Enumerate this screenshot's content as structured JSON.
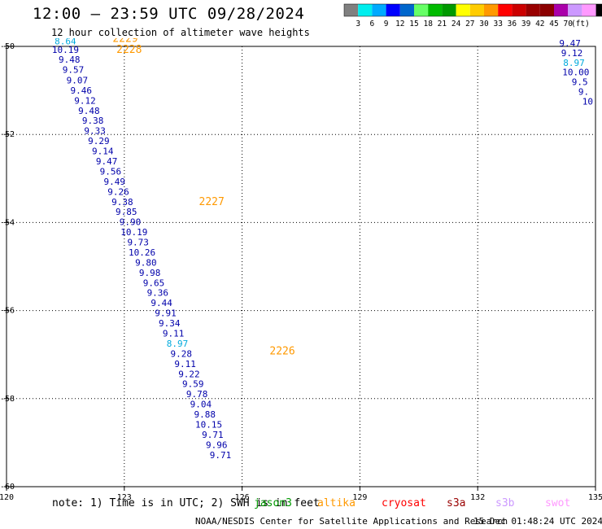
{
  "header": {
    "title": "12:00 – 23:59 UTC 09/28/2024",
    "subtitle": "12 hour collection of altimeter wave heights"
  },
  "legend": {
    "unit": "(ft)",
    "colors": [
      "#808080",
      "#00eeee",
      "#00aaff",
      "#0000ff",
      "#0066cc",
      "#66ff66",
      "#00bb00",
      "#009900",
      "#ffff00",
      "#ffcc00",
      "#ff9900",
      "#ff0000",
      "#cc0000",
      "#990000",
      "#8b0000",
      "#aa00aa",
      "#cc99ff",
      "#ff99ff",
      "#000000"
    ],
    "labels": [
      "3",
      "6",
      "9",
      "12",
      "15",
      "18",
      "21",
      "24",
      "27",
      "30",
      "33",
      "36",
      "39",
      "42",
      "45",
      "70"
    ]
  },
  "footer": {
    "note": "note: 1) Time is in UTC; 2) SWH is in feet",
    "missions": [
      {
        "name": "jason3",
        "color": "#009900"
      },
      {
        "name": "altika",
        "color": "#ff9900"
      },
      {
        "name": "cryosat",
        "color": "#ff0000"
      },
      {
        "name": "s3a",
        "color": "#990000"
      },
      {
        "name": "s3b",
        "color": "#cc99ff"
      },
      {
        "name": "swot",
        "color": "#ff99ff"
      }
    ],
    "credit": "NOAA/NESDIS Center for Satellite Applications and Research",
    "timestamp": "15 Dec 01:48:24 UTC 2024"
  },
  "chart_data": {
    "type": "scatter",
    "xlim": [
      120,
      135
    ],
    "ylim": [
      -60,
      -50
    ],
    "xticks": [
      "120",
      "123",
      "126",
      "129",
      "132",
      "135"
    ],
    "yticks": [
      "-50",
      "-52",
      "-54",
      "-56",
      "-58",
      "-60"
    ],
    "grid": true,
    "colors": {
      "light": "#00aadd",
      "dark": "#0000aa",
      "pass": "#ff9900"
    },
    "tracks": [
      {
        "x": 124.9,
        "y": -53.6,
        "label": "2227"
      },
      {
        "x": 126.7,
        "y": -57.0,
        "label": "2226"
      }
    ],
    "track_2229": [
      {
        "x": 122.7,
        "y": -49.9,
        "label": "2229"
      },
      {
        "x": 122.8,
        "y": -50.15,
        "label": "2228"
      }
    ],
    "points": [
      {
        "x": 121.5,
        "y": -49.95,
        "v": "8.64",
        "c": "light"
      },
      {
        "x": 121.5,
        "y": -50.15,
        "v": "10.19",
        "c": "dark"
      },
      {
        "x": 121.6,
        "y": -50.37,
        "v": "9.48",
        "c": "dark"
      },
      {
        "x": 121.7,
        "y": -50.6,
        "v": "9.57",
        "c": "dark"
      },
      {
        "x": 121.8,
        "y": -50.84,
        "v": "9.07",
        "c": "dark"
      },
      {
        "x": 121.9,
        "y": -51.07,
        "v": "9.46",
        "c": "dark"
      },
      {
        "x": 122.0,
        "y": -51.3,
        "v": "9.12",
        "c": "dark"
      },
      {
        "x": 122.1,
        "y": -51.53,
        "v": "9.48",
        "c": "dark"
      },
      {
        "x": 122.2,
        "y": -51.76,
        "v": "9.38",
        "c": "dark"
      },
      {
        "x": 122.25,
        "y": -51.99,
        "v": "9.33",
        "c": "dark"
      },
      {
        "x": 122.35,
        "y": -52.22,
        "v": "9.29",
        "c": "dark"
      },
      {
        "x": 122.45,
        "y": -52.45,
        "v": "9.14",
        "c": "dark"
      },
      {
        "x": 122.55,
        "y": -52.68,
        "v": "9.47",
        "c": "dark"
      },
      {
        "x": 122.65,
        "y": -52.91,
        "v": "9.56",
        "c": "dark"
      },
      {
        "x": 122.75,
        "y": -53.14,
        "v": "9.49",
        "c": "dark"
      },
      {
        "x": 122.85,
        "y": -53.37,
        "v": "9.26",
        "c": "dark"
      },
      {
        "x": 122.95,
        "y": -53.6,
        "v": "9.38",
        "c": "dark"
      },
      {
        "x": 123.05,
        "y": -53.83,
        "v": "9.85",
        "c": "dark"
      },
      {
        "x": 123.15,
        "y": -54.06,
        "v": "9.90",
        "c": "dark"
      },
      {
        "x": 123.25,
        "y": -54.29,
        "v": "10.19",
        "c": "dark"
      },
      {
        "x": 123.35,
        "y": -54.52,
        "v": "9.73",
        "c": "dark"
      },
      {
        "x": 123.45,
        "y": -54.75,
        "v": "10.26",
        "c": "dark"
      },
      {
        "x": 123.55,
        "y": -54.98,
        "v": "9.80",
        "c": "dark"
      },
      {
        "x": 123.65,
        "y": -55.21,
        "v": "9.98",
        "c": "dark"
      },
      {
        "x": 123.75,
        "y": -55.44,
        "v": "9.65",
        "c": "dark"
      },
      {
        "x": 123.85,
        "y": -55.67,
        "v": "9.36",
        "c": "dark"
      },
      {
        "x": 123.95,
        "y": -55.9,
        "v": "9.44",
        "c": "dark"
      },
      {
        "x": 124.05,
        "y": -56.13,
        "v": "9.91",
        "c": "dark"
      },
      {
        "x": 124.15,
        "y": -56.36,
        "v": "9.34",
        "c": "dark"
      },
      {
        "x": 124.25,
        "y": -56.59,
        "v": "9.11",
        "c": "dark"
      },
      {
        "x": 124.35,
        "y": -56.82,
        "v": "8.97",
        "c": "light"
      },
      {
        "x": 124.45,
        "y": -57.05,
        "v": "9.28",
        "c": "dark"
      },
      {
        "x": 124.55,
        "y": -57.28,
        "v": "9.11",
        "c": "dark"
      },
      {
        "x": 124.65,
        "y": -57.51,
        "v": "9.22",
        "c": "dark"
      },
      {
        "x": 124.75,
        "y": -57.74,
        "v": "9.59",
        "c": "dark"
      },
      {
        "x": 124.85,
        "y": -57.97,
        "v": "9.78",
        "c": "dark"
      },
      {
        "x": 124.95,
        "y": -58.2,
        "v": "9.04",
        "c": "dark"
      },
      {
        "x": 125.05,
        "y": -58.43,
        "v": "9.88",
        "c": "dark"
      },
      {
        "x": 125.15,
        "y": -58.66,
        "v": "10.15",
        "c": "dark"
      },
      {
        "x": 125.25,
        "y": -58.89,
        "v": "9.71",
        "c": "dark"
      },
      {
        "x": 125.35,
        "y": -59.12,
        "v": "9.96",
        "c": "dark"
      },
      {
        "x": 125.45,
        "y": -59.35,
        "v": "9.71",
        "c": "dark"
      },
      {
        "x": 134.35,
        "y": -50.0,
        "v": "9.47",
        "c": "dark"
      },
      {
        "x": 134.4,
        "y": -50.22,
        "v": "9.12",
        "c": "dark"
      },
      {
        "x": 134.45,
        "y": -50.44,
        "v": "8.97",
        "c": "light"
      },
      {
        "x": 134.5,
        "y": -50.66,
        "v": "10.00",
        "c": "dark"
      },
      {
        "x": 134.6,
        "y": -50.88,
        "v": "9.5",
        "c": "dark"
      },
      {
        "x": 134.7,
        "y": -51.1,
        "v": "9.",
        "c": "dark"
      },
      {
        "x": 134.8,
        "y": -51.32,
        "v": "10",
        "c": "dark"
      }
    ]
  }
}
